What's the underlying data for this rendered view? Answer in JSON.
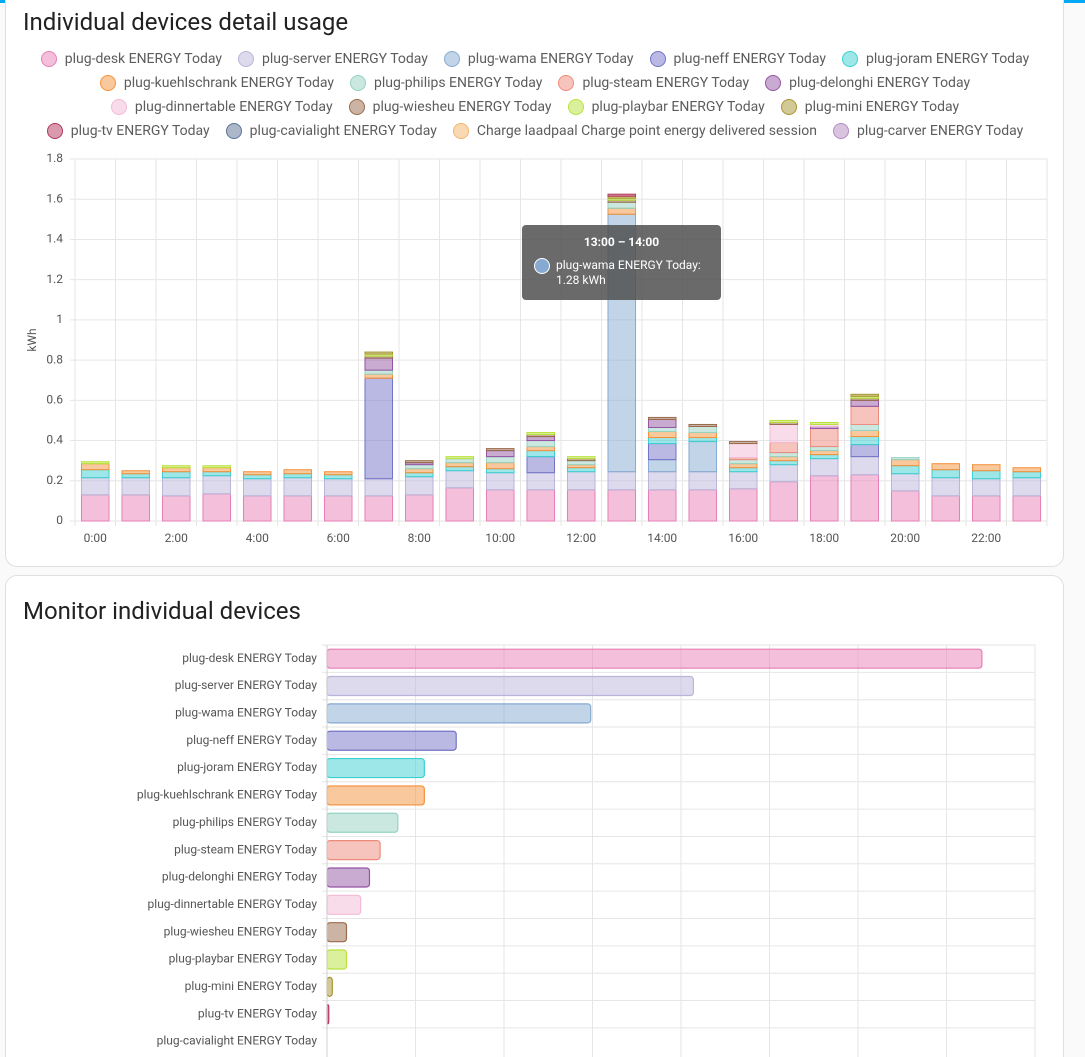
{
  "chart_data": [
    {
      "type": "bar",
      "stacked": true,
      "title": "Individual devices detail usage",
      "y_label": "kWh",
      "categories": [
        "0:00",
        null,
        "2:00",
        null,
        "4:00",
        null,
        "6:00",
        null,
        "8:00",
        null,
        "10:00",
        null,
        "12:00",
        null,
        "14:00",
        null,
        "16:00",
        null,
        "18:00",
        null,
        "20:00",
        null,
        "22:00",
        null
      ],
      "ylim": [
        0,
        1.8
      ],
      "yticks": [
        0,
        0.2,
        0.4,
        0.6,
        0.8,
        1,
        1.2,
        1.4,
        1.6,
        1.8
      ],
      "grid": true,
      "series": [
        {
          "name": "plug-desk ENERGY Today",
          "color": "#e77fb5",
          "values": [
            0.13,
            0.13,
            0.125,
            0.135,
            0.125,
            0.125,
            0.125,
            0.125,
            0.13,
            0.165,
            0.155,
            0.155,
            0.155,
            0.155,
            0.155,
            0.155,
            0.16,
            0.195,
            0.225,
            0.23,
            0.15,
            0.125,
            0.125,
            0.125
          ]
        },
        {
          "name": "plug-server ENERGY Today",
          "color": "#b9b5d9",
          "values": [
            0.085,
            0.085,
            0.09,
            0.09,
            0.085,
            0.09,
            0.085,
            0.085,
            0.09,
            0.085,
            0.085,
            0.085,
            0.09,
            0.09,
            0.09,
            0.09,
            0.085,
            0.085,
            0.085,
            0.09,
            0.085,
            0.09,
            0.085,
            0.09
          ]
        },
        {
          "name": "plug-wama ENERGY Today",
          "color": "#86aad2",
          "values": [
            0,
            0,
            0,
            0,
            0,
            0,
            0,
            0,
            0,
            0,
            0,
            0,
            0,
            1.28,
            0.06,
            0.15,
            0,
            0,
            0,
            0,
            0,
            0,
            0,
            0
          ]
        },
        {
          "name": "plug-neff ENERGY Today",
          "color": "#7373c7",
          "values": [
            0,
            0,
            0,
            0,
            0,
            0,
            0,
            0.5,
            0,
            0,
            0,
            0.08,
            0,
            0,
            0.08,
            0,
            0,
            0,
            0,
            0.06,
            0,
            0,
            0,
            0
          ]
        },
        {
          "name": "plug-joram ENERGY Today",
          "color": "#3ccfd1",
          "values": [
            0.04,
            0.02,
            0.03,
            0.02,
            0.02,
            0.02,
            0.02,
            0,
            0.02,
            0.02,
            0.02,
            0.03,
            0.02,
            0,
            0.03,
            0.02,
            0.02,
            0.02,
            0.02,
            0.04,
            0.04,
            0.04,
            0.04,
            0.03
          ]
        },
        {
          "name": "plug-kuehlschrank ENERGY Today",
          "color": "#f3923a",
          "values": [
            0.03,
            0.015,
            0.02,
            0.02,
            0.015,
            0.02,
            0.015,
            0.02,
            0.02,
            0.02,
            0.03,
            0.02,
            0.015,
            0.03,
            0.03,
            0.025,
            0.02,
            0.02,
            0.02,
            0.03,
            0.03,
            0.03,
            0.03,
            0.02
          ]
        },
        {
          "name": "plug-philips ENERGY Today",
          "color": "#95d2c1",
          "values": [
            0,
            0,
            0,
            0,
            0,
            0,
            0,
            0.02,
            0.02,
            0.02,
            0.03,
            0.03,
            0.02,
            0.03,
            0.02,
            0.03,
            0.02,
            0.02,
            0.02,
            0.03,
            0.01,
            0,
            0,
            0
          ]
        },
        {
          "name": "plug-steam ENERGY Today",
          "color": "#ee8a7a",
          "values": [
            0,
            0,
            0,
            0,
            0,
            0,
            0,
            0,
            0,
            0,
            0,
            0,
            0,
            0,
            0,
            0,
            0.01,
            0.05,
            0.09,
            0.09,
            0,
            0,
            0,
            0
          ]
        },
        {
          "name": "plug-delonghi ENERGY Today",
          "color": "#9455a3",
          "values": [
            0,
            0,
            0,
            0,
            0,
            0,
            0,
            0.06,
            0.01,
            0,
            0.03,
            0.02,
            0,
            0,
            0.04,
            0,
            0,
            0,
            0.01,
            0.03,
            0,
            0,
            0,
            0
          ]
        },
        {
          "name": "plug-dinnertable ENERGY Today",
          "color": "#f4b9d6",
          "values": [
            0,
            0,
            0,
            0,
            0,
            0,
            0,
            0,
            0,
            0,
            0,
            0,
            0,
            0,
            0,
            0,
            0.07,
            0.09,
            0.01,
            0,
            0,
            0,
            0,
            0
          ]
        },
        {
          "name": "plug-wiesheu ENERGY Today",
          "color": "#9a6a4c",
          "values": [
            0,
            0,
            0,
            0,
            0,
            0,
            0,
            0.01,
            0.01,
            0,
            0.01,
            0.01,
            0.01,
            0.01,
            0.01,
            0.01,
            0.01,
            0.01,
            0,
            0.01,
            0,
            0,
            0,
            0
          ]
        },
        {
          "name": "plug-playbar ENERGY Today",
          "color": "#b8e23c",
          "values": [
            0.01,
            0,
            0.01,
            0.01,
            0,
            0,
            0,
            0.01,
            0,
            0.01,
            0,
            0.01,
            0.01,
            0.01,
            0,
            0,
            0,
            0.01,
            0.01,
            0.01,
            0,
            0,
            0,
            0
          ]
        },
        {
          "name": "plug-mini ENERGY Today",
          "color": "#a89430",
          "values": [
            0,
            0,
            0,
            0,
            0,
            0,
            0,
            0.01,
            0,
            0,
            0,
            0,
            0,
            0.01,
            0,
            0,
            0,
            0,
            0,
            0.01,
            0,
            0,
            0,
            0
          ]
        },
        {
          "name": "plug-tv ENERGY Today",
          "color": "#b3365c",
          "values": [
            0,
            0,
            0,
            0,
            0,
            0,
            0,
            0,
            0,
            0,
            0,
            0,
            0,
            0.01,
            0,
            0,
            0,
            0,
            0,
            0,
            0,
            0,
            0,
            0
          ]
        },
        {
          "name": "plug-cavialight ENERGY Today",
          "color": "#5a7295",
          "values": [
            0,
            0,
            0,
            0,
            0,
            0,
            0,
            0,
            0,
            0,
            0,
            0,
            0,
            0,
            0,
            0,
            0,
            0,
            0,
            0,
            0,
            0,
            0,
            0
          ]
        },
        {
          "name": "Charge laadpaal Charge point energy delivered session",
          "color": "#f3b46a",
          "values": [
            0,
            0,
            0,
            0,
            0,
            0,
            0,
            0,
            0,
            0,
            0,
            0,
            0,
            0,
            0,
            0,
            0,
            0,
            0,
            0,
            0,
            0,
            0,
            0
          ]
        },
        {
          "name": "plug-carver ENERGY Today",
          "color": "#b38ac2",
          "values": [
            0,
            0,
            0,
            0,
            0,
            0,
            0,
            0,
            0,
            0,
            0,
            0,
            0,
            0,
            0,
            0,
            0,
            0,
            0,
            0,
            0,
            0,
            0,
            0
          ]
        }
      ],
      "tooltip": {
        "title": "13:00 – 14:00",
        "label": "plug-wama ENERGY Today:",
        "value_label": "1.28 kWh"
      }
    },
    {
      "type": "bar",
      "horizontal": true,
      "title": "Monitor individual devices",
      "categories": [
        "plug-desk ENERGY Today",
        "plug-server ENERGY Today",
        "plug-wama ENERGY Today",
        "plug-neff ENERGY Today",
        "plug-joram ENERGY Today",
        "plug-kuehlschrank ENERGY Today",
        "plug-philips ENERGY Today",
        "plug-steam ENERGY Today",
        "plug-delonghi ENERGY Today",
        "plug-dinnertable ENERGY Today",
        "plug-wiesheu ENERGY Today",
        "plug-playbar ENERGY Today",
        "plug-mini ENERGY Today",
        "plug-tv ENERGY Today",
        "plug-cavialight ENERGY Today"
      ],
      "values": [
        3.7,
        2.07,
        1.49,
        0.73,
        0.55,
        0.55,
        0.4,
        0.3,
        0.24,
        0.19,
        0.11,
        0.11,
        0.03,
        0.01,
        0
      ],
      "colors": [
        "#e77fb5",
        "#b9b5d9",
        "#86aad2",
        "#7373c7",
        "#3ccfd1",
        "#f3923a",
        "#95d2c1",
        "#ee8a7a",
        "#9455a3",
        "#f4b9d6",
        "#9a6a4c",
        "#b8e23c",
        "#a89430",
        "#b3365c",
        "#5a7295"
      ],
      "xlim": [
        0,
        4
      ],
      "xticks": [
        0,
        0.5,
        1,
        1.5,
        2,
        2.5,
        3,
        3.5,
        4
      ],
      "grid": true
    }
  ]
}
